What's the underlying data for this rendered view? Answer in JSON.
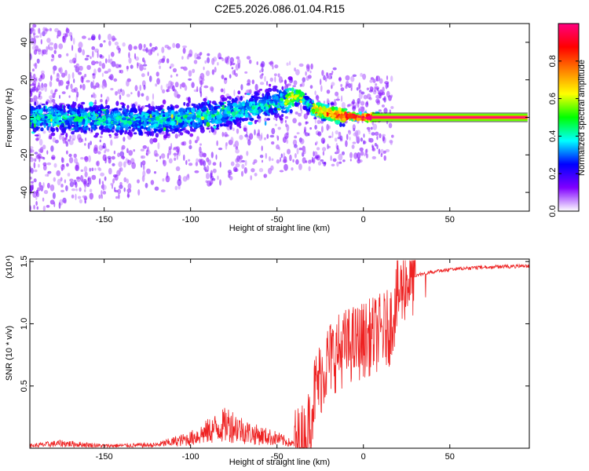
{
  "title": "C2E5.2026.086.01.04.R15",
  "chart_data": [
    {
      "type": "heatmap",
      "xlabel": "Height of straight line (km)",
      "ylabel": "Frequency (Hz)",
      "xlim": [
        -193,
        96
      ],
      "ylim": [
        -50,
        50
      ],
      "xticks": [
        -150,
        -100,
        -50,
        0,
        50
      ],
      "yticks": [
        -40,
        -20,
        0,
        20,
        40
      ],
      "xtick_labels": [
        "-150",
        "-100",
        "-50",
        "0",
        "50"
      ],
      "ytick_labels": [
        "-40",
        "-20",
        "0",
        "20",
        "40"
      ],
      "colorbar": {
        "label": "Normalized spectral amplitude",
        "range": [
          0,
          1
        ],
        "ticks": [
          0.0,
          0.2,
          0.4,
          0.6,
          0.8
        ],
        "tick_labels": [
          "0.0",
          "0.2",
          "0.4",
          "0.6",
          "0.8"
        ],
        "colors": [
          "#ffffff",
          "#8000ff",
          "#0000ff",
          "#00ffff",
          "#00ff00",
          "#ffff00",
          "#ff8000",
          "#ff0000",
          "#ff0080"
        ]
      },
      "ridge": [
        {
          "x": -190,
          "y": 0
        },
        {
          "x": -150,
          "y": -1
        },
        {
          "x": -120,
          "y": -2
        },
        {
          "x": -100,
          "y": 0
        },
        {
          "x": -80,
          "y": 2
        },
        {
          "x": -60,
          "y": 6
        },
        {
          "x": -45,
          "y": 9
        },
        {
          "x": -37,
          "y": 12
        },
        {
          "x": -30,
          "y": 5
        },
        {
          "x": -15,
          "y": 1
        },
        {
          "x": 0,
          "y": 0
        },
        {
          "x": 95,
          "y": 0
        }
      ],
      "steady_line": {
        "x_from": 5,
        "x_to": 95,
        "y": 0,
        "amplitude": 1.0
      }
    },
    {
      "type": "line",
      "xlabel": "Height of straight line (km)",
      "ylabel": "SNR (10 * v/v)",
      "y_multiplier": "(x10⁴)",
      "xlim": [
        -193,
        96
      ],
      "ylim": [
        0,
        1.52
      ],
      "xticks": [
        -150,
        -100,
        -50,
        0,
        50
      ],
      "yticks": [
        0.5,
        1.0,
        1.5
      ],
      "xtick_labels": [
        "-150",
        "-100",
        "-50",
        "0",
        "50"
      ],
      "ytick_labels": [
        "0.5",
        "1.0",
        "1.5"
      ],
      "line_color": "#ee2222",
      "envelope": [
        {
          "x": -193,
          "y": 0.03
        },
        {
          "x": -175,
          "y": 0.06
        },
        {
          "x": -150,
          "y": 0.03
        },
        {
          "x": -120,
          "y": 0.04
        },
        {
          "x": -100,
          "y": 0.12
        },
        {
          "x": -85,
          "y": 0.25
        },
        {
          "x": -78,
          "y": 0.3
        },
        {
          "x": -65,
          "y": 0.18
        },
        {
          "x": -50,
          "y": 0.12
        },
        {
          "x": -40,
          "y": 0.05
        },
        {
          "x": -33,
          "y": 0.1
        },
        {
          "x": -28,
          "y": 0.5
        },
        {
          "x": -20,
          "y": 0.75
        },
        {
          "x": -10,
          "y": 0.85
        },
        {
          "x": 0,
          "y": 0.9
        },
        {
          "x": 15,
          "y": 1.0
        },
        {
          "x": 20,
          "y": 1.25
        },
        {
          "x": 25,
          "y": 1.38
        },
        {
          "x": 35,
          "y": 1.42
        },
        {
          "x": 50,
          "y": 1.45
        },
        {
          "x": 70,
          "y": 1.47
        },
        {
          "x": 96,
          "y": 1.48
        }
      ]
    }
  ]
}
